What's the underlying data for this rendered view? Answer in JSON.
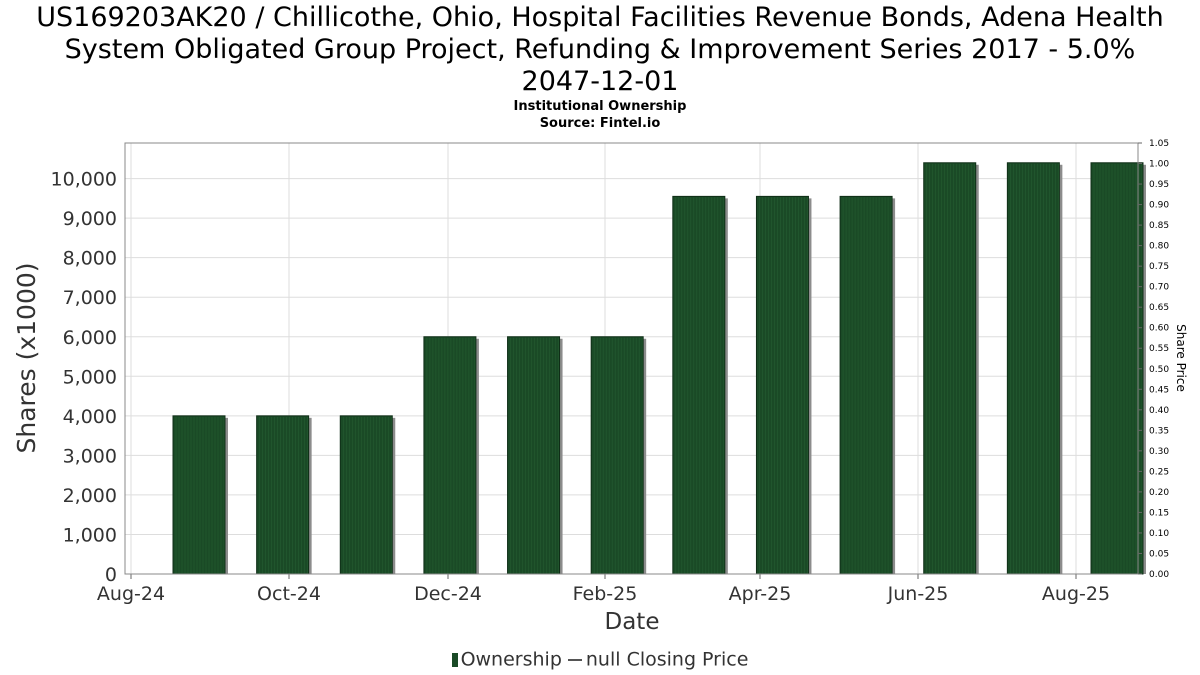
{
  "header": {
    "title_lines": [
      "US169203AK20 / Chillicothe, Ohio, Hospital Facilities Revenue Bonds, Adena Health",
      "System Obligated Group Project, Refunding & Improvement Series 2017 - 5.0%",
      "2047-12-01"
    ],
    "subtitle_lines": [
      "Institutional Ownership",
      "Source: Fintel.io"
    ]
  },
  "legend": {
    "ownership_label": "Ownership",
    "price_label": "null Closing Price"
  },
  "colors": {
    "bar": "#1a4a26",
    "bar_shadow": "#8c8c8c",
    "grid": "#dddddd"
  },
  "chart_data": {
    "type": "bar",
    "xlabel": "Date",
    "ylabel": "Shares (x1000)",
    "y2label": "Share Price",
    "x_ticks": [
      "Aug-24",
      "Oct-24",
      "Dec-24",
      "Feb-25",
      "Apr-25",
      "Jun-25",
      "Aug-25"
    ],
    "ylim": [
      0,
      10900
    ],
    "y_ticks": [
      0,
      1000,
      2000,
      3000,
      4000,
      5000,
      6000,
      7000,
      8000,
      9000,
      10000
    ],
    "y2lim": [
      0,
      1.05
    ],
    "y2_ticks": [
      "0.00",
      "0.05",
      "0.10",
      "0.15",
      "0.20",
      "0.25",
      "0.30",
      "0.35",
      "0.40",
      "0.45",
      "0.50",
      "0.55",
      "0.60",
      "0.65",
      "0.70",
      "0.75",
      "0.80",
      "0.85",
      "0.90",
      "0.95",
      "1.00",
      "1.05"
    ],
    "series": [
      {
        "name": "Ownership",
        "values": [
          4000,
          4000,
          4000,
          6000,
          6000,
          6000,
          9550,
          9550,
          9550,
          10400,
          10400,
          10400
        ]
      }
    ],
    "grid": true,
    "legend_position": "bottom"
  }
}
